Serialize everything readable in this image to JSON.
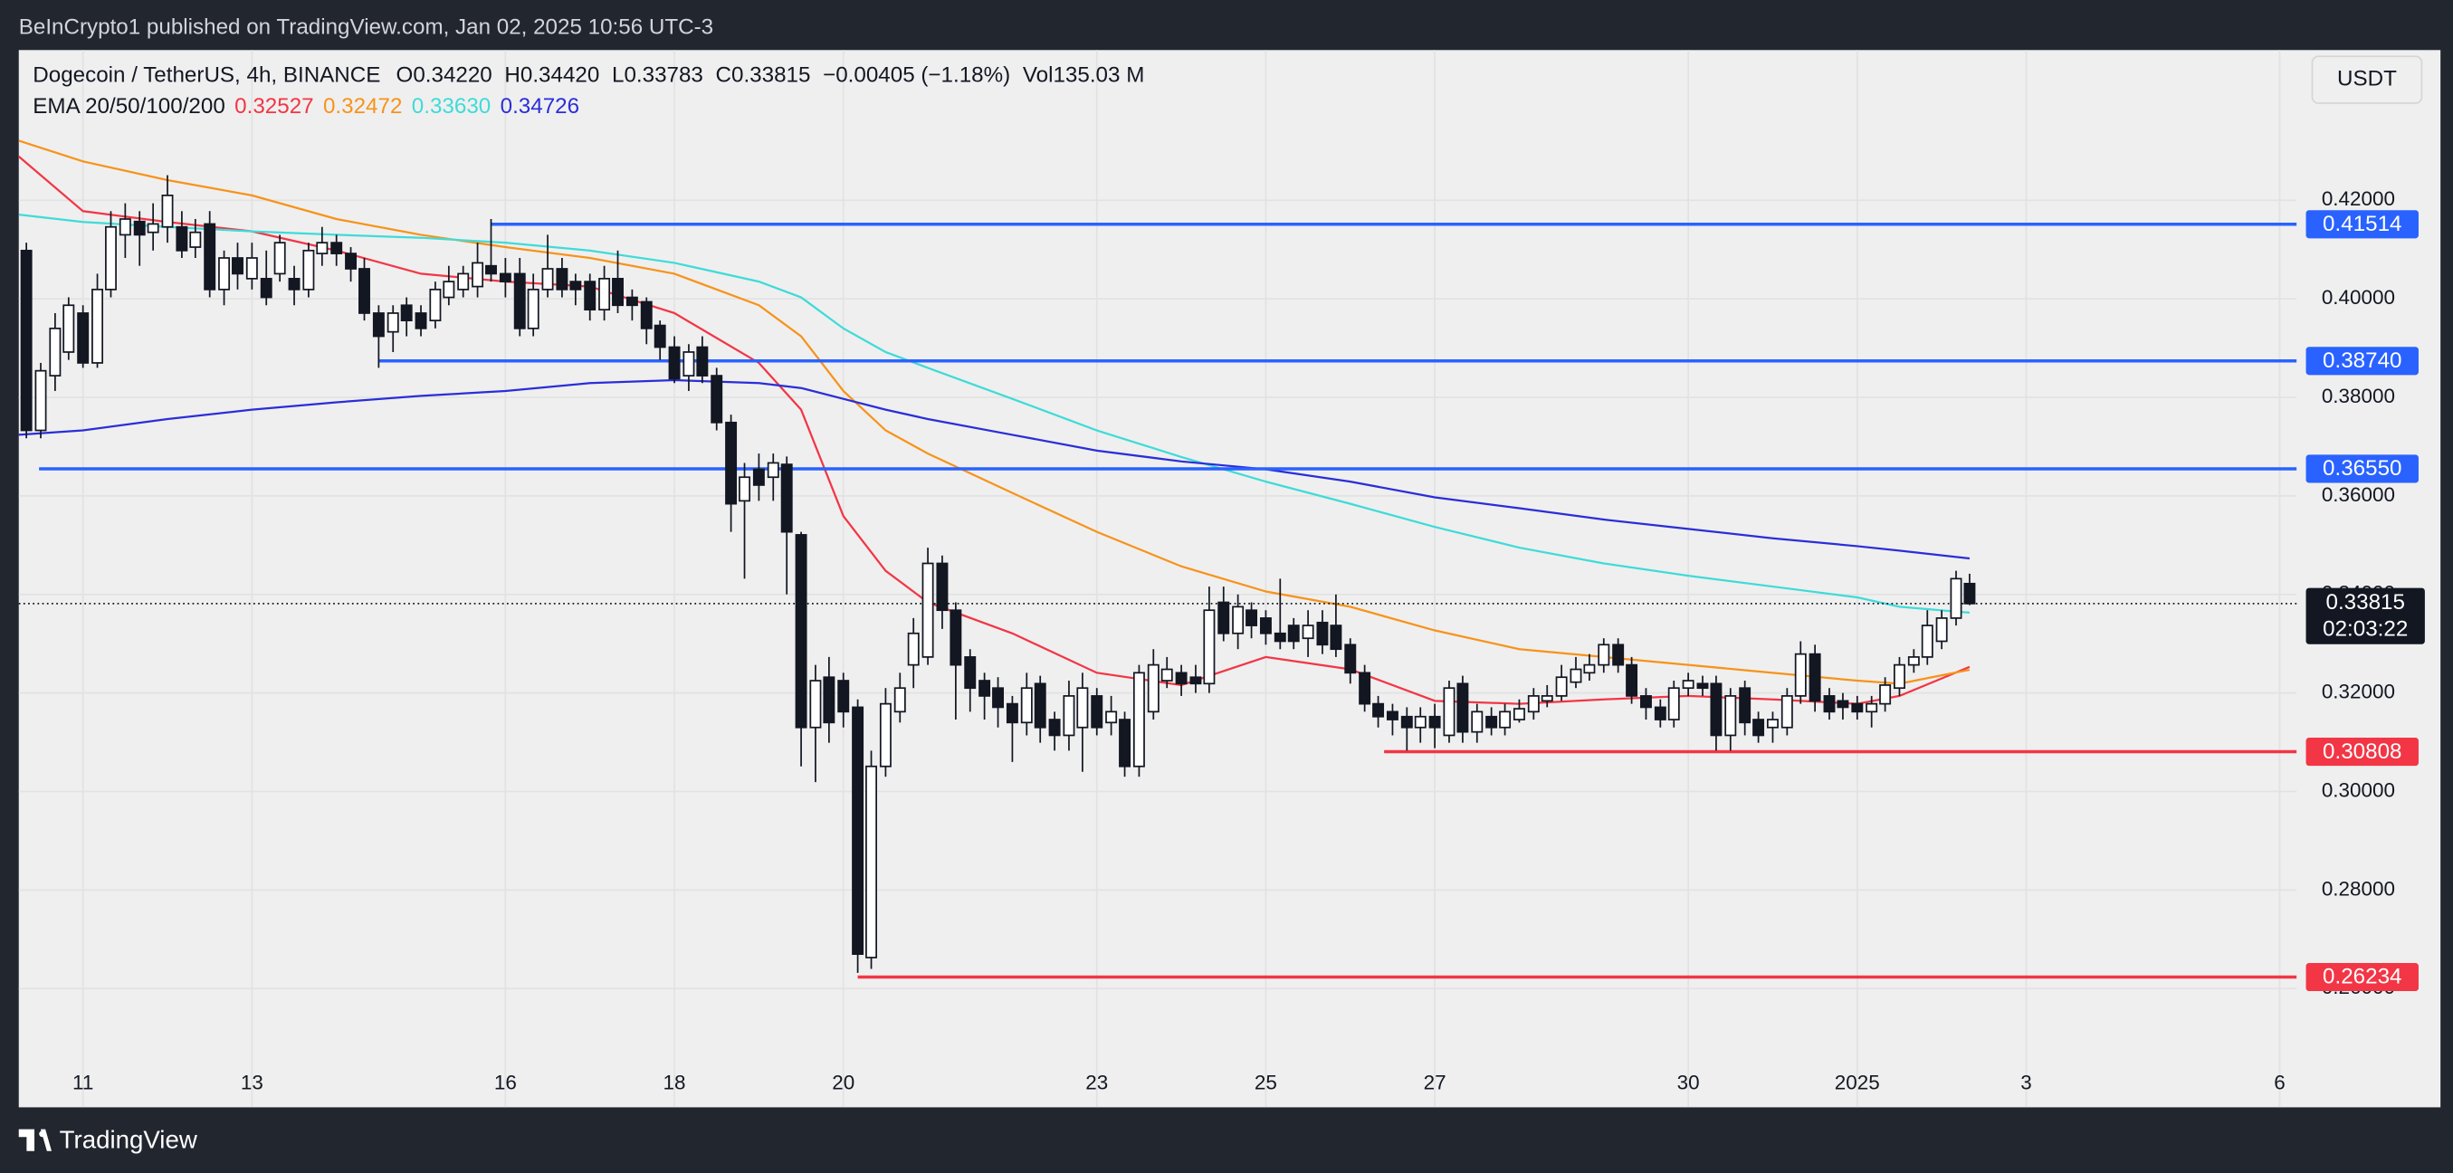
{
  "header": {
    "publisher": "BeInCrypto1 published on TradingView.com, Jan 02, 2025 10:56 UTC-3"
  },
  "footer": {
    "brand": "TradingView"
  },
  "chart_data": {
    "type": "candlestick",
    "symbol": "Dogecoin / TetherUS, 4h, BINANCE",
    "ohlc_legend": [
      {
        "label": "O",
        "value": "0.34220"
      },
      {
        "label": "H",
        "value": "0.34420"
      },
      {
        "label": "L",
        "value": "0.33783"
      },
      {
        "label": "C",
        "value": "0.33815"
      }
    ],
    "change": "−0.00405 (−1.18%)",
    "volume_label": "Vol",
    "volume": "135.03 M",
    "currency": "USDT",
    "up_color": "#ffffff",
    "down_color": "#131722",
    "x": [
      10.33,
      10.5,
      10.67,
      10.83,
      11,
      11.17,
      11.33,
      11.5,
      11.67,
      11.83,
      12,
      12.17,
      12.33,
      12.5,
      12.67,
      12.83,
      13,
      13.17,
      13.33,
      13.5,
      13.67,
      13.83,
      14,
      14.17,
      14.33,
      14.5,
      14.67,
      14.83,
      15,
      15.17,
      15.33,
      15.5,
      15.67,
      15.83,
      16,
      16.17,
      16.33,
      16.5,
      16.67,
      16.83,
      17,
      17.17,
      17.33,
      17.5,
      17.67,
      17.83,
      18,
      18.17,
      18.33,
      18.5,
      18.67,
      18.83,
      19,
      19.17,
      19.33,
      19.5,
      19.67,
      19.83,
      20,
      20.17,
      20.33,
      20.5,
      20.67,
      20.83,
      21,
      21.17,
      21.33,
      21.5,
      21.67,
      21.83,
      22,
      22.17,
      22.33,
      22.5,
      22.67,
      22.83,
      23,
      23.17,
      23.33,
      23.5,
      23.67,
      23.83,
      24,
      24.17,
      24.33,
      24.5,
      24.67,
      24.83,
      25,
      25.17,
      25.33,
      25.5,
      25.67,
      25.83,
      26,
      26.17,
      26.33,
      26.5,
      26.67,
      26.83,
      27,
      27.17,
      27.33,
      27.5,
      27.67,
      27.83,
      28,
      28.17,
      28.33,
      28.5,
      28.67,
      28.83,
      29,
      29.17,
      29.33,
      29.5,
      29.67,
      29.83,
      30,
      30.17,
      30.33,
      30.5,
      30.67,
      30.83,
      31,
      31.17,
      31.33,
      31.5,
      31.67,
      31.83,
      32,
      32.17,
      32.33,
      32.5,
      32.67,
      32.83,
      33,
      33.17,
      33.33
    ],
    "ohlc": [
      [
        0.4098,
        0.4114,
        0.3717,
        0.3733
      ],
      [
        0.3733,
        0.387,
        0.3717,
        0.3854
      ],
      [
        0.3844,
        0.3971,
        0.3813,
        0.394
      ],
      [
        0.3892,
        0.4003,
        0.3876,
        0.3987
      ],
      [
        0.3971,
        0.3987,
        0.386,
        0.387
      ],
      [
        0.387,
        0.4051,
        0.386,
        0.4019
      ],
      [
        0.4019,
        0.4178,
        0.4003,
        0.4146
      ],
      [
        0.413,
        0.4194,
        0.4083,
        0.4162
      ],
      [
        0.4157,
        0.4178,
        0.4067,
        0.413
      ],
      [
        0.4135,
        0.4194,
        0.4098,
        0.4152
      ],
      [
        0.4146,
        0.4251,
        0.4114,
        0.421
      ],
      [
        0.4146,
        0.4178,
        0.4083,
        0.4098
      ],
      [
        0.4105,
        0.4162,
        0.4083,
        0.4135
      ],
      [
        0.4152,
        0.4178,
        0.4003,
        0.4019
      ],
      [
        0.4019,
        0.4098,
        0.3987,
        0.4083
      ],
      [
        0.4083,
        0.4114,
        0.4019,
        0.4051
      ],
      [
        0.4041,
        0.4114,
        0.4019,
        0.4083
      ],
      [
        0.4041,
        0.4098,
        0.3987,
        0.4003
      ],
      [
        0.4051,
        0.413,
        0.4035,
        0.4114
      ],
      [
        0.4041,
        0.4067,
        0.3987,
        0.4019
      ],
      [
        0.4019,
        0.4114,
        0.4003,
        0.4098
      ],
      [
        0.4092,
        0.4146,
        0.4067,
        0.4114
      ],
      [
        0.4114,
        0.413,
        0.4067,
        0.4092
      ],
      [
        0.4092,
        0.4105,
        0.4035,
        0.4061
      ],
      [
        0.4061,
        0.4083,
        0.3956,
        0.3971
      ],
      [
        0.3971,
        0.3987,
        0.386,
        0.3924
      ],
      [
        0.3933,
        0.3987,
        0.3892,
        0.3971
      ],
      [
        0.3987,
        0.4003,
        0.3924,
        0.3956
      ],
      [
        0.3971,
        0.3987,
        0.3924,
        0.394
      ],
      [
        0.3956,
        0.4035,
        0.394,
        0.4019
      ],
      [
        0.4003,
        0.4067,
        0.3987,
        0.4035
      ],
      [
        0.4019,
        0.4067,
        0.4003,
        0.4051
      ],
      [
        0.4025,
        0.4114,
        0.4003,
        0.4073
      ],
      [
        0.4067,
        0.4162,
        0.4035,
        0.4051
      ],
      [
        0.4051,
        0.4083,
        0.4003,
        0.4035
      ],
      [
        0.4051,
        0.4083,
        0.3924,
        0.394
      ],
      [
        0.394,
        0.4051,
        0.3924,
        0.4019
      ],
      [
        0.4019,
        0.413,
        0.4003,
        0.4061
      ],
      [
        0.4061,
        0.4083,
        0.4003,
        0.4019
      ],
      [
        0.4035,
        0.4051,
        0.3987,
        0.4019
      ],
      [
        0.4035,
        0.4051,
        0.3956,
        0.3978
      ],
      [
        0.3978,
        0.4067,
        0.3956,
        0.4041
      ],
      [
        0.4041,
        0.4098,
        0.3971,
        0.3987
      ],
      [
        0.4003,
        0.4019,
        0.3956,
        0.3987
      ],
      [
        0.3994,
        0.4003,
        0.3908,
        0.394
      ],
      [
        0.3946,
        0.3956,
        0.3876,
        0.3902
      ],
      [
        0.3902,
        0.3924,
        0.3829,
        0.3838
      ],
      [
        0.3844,
        0.3908,
        0.3813,
        0.3892
      ],
      [
        0.3902,
        0.3924,
        0.3829,
        0.3844
      ],
      [
        0.3844,
        0.386,
        0.3733,
        0.3749
      ],
      [
        0.3749,
        0.3765,
        0.3527,
        0.3584
      ],
      [
        0.359,
        0.3667,
        0.3432,
        0.3638
      ],
      [
        0.3654,
        0.3686,
        0.359,
        0.3622
      ],
      [
        0.3638,
        0.3686,
        0.359,
        0.3667
      ],
      [
        0.3664,
        0.368,
        0.34,
        0.3527
      ],
      [
        0.3521,
        0.3527,
        0.3051,
        0.313
      ],
      [
        0.313,
        0.3257,
        0.3019,
        0.3225
      ],
      [
        0.3232,
        0.3273,
        0.3099,
        0.314
      ],
      [
        0.3225,
        0.3241,
        0.313,
        0.3162
      ],
      [
        0.3171,
        0.3187,
        0.2632,
        0.267
      ],
      [
        0.2663,
        0.3083,
        0.264,
        0.3051
      ],
      [
        0.3051,
        0.321,
        0.303,
        0.3178
      ],
      [
        0.3162,
        0.3241,
        0.314,
        0.321
      ],
      [
        0.3257,
        0.3352,
        0.321,
        0.3321
      ],
      [
        0.3273,
        0.3495,
        0.3257,
        0.3463
      ],
      [
        0.3463,
        0.3479,
        0.333,
        0.3368
      ],
      [
        0.3368,
        0.3384,
        0.3146,
        0.3257
      ],
      [
        0.3273,
        0.3289,
        0.3162,
        0.321
      ],
      [
        0.3225,
        0.3241,
        0.3146,
        0.3194
      ],
      [
        0.321,
        0.3232,
        0.313,
        0.3171
      ],
      [
        0.3178,
        0.3194,
        0.306,
        0.314
      ],
      [
        0.314,
        0.3241,
        0.3114,
        0.321
      ],
      [
        0.3219,
        0.3235,
        0.3099,
        0.313
      ],
      [
        0.3146,
        0.3162,
        0.3083,
        0.3114
      ],
      [
        0.3114,
        0.3225,
        0.3083,
        0.3194
      ],
      [
        0.313,
        0.3241,
        0.304,
        0.321
      ],
      [
        0.3194,
        0.321,
        0.3114,
        0.313
      ],
      [
        0.314,
        0.3194,
        0.3114,
        0.3162
      ],
      [
        0.3146,
        0.3162,
        0.303,
        0.3051
      ],
      [
        0.3051,
        0.3257,
        0.303,
        0.3241
      ],
      [
        0.3162,
        0.3289,
        0.3146,
        0.3257
      ],
      [
        0.3225,
        0.3273,
        0.321,
        0.3248
      ],
      [
        0.3241,
        0.3257,
        0.3194,
        0.3219
      ],
      [
        0.3232,
        0.3257,
        0.32,
        0.3219
      ],
      [
        0.3219,
        0.3416,
        0.32,
        0.3368
      ],
      [
        0.3384,
        0.3416,
        0.3305,
        0.3321
      ],
      [
        0.3321,
        0.34,
        0.3289,
        0.3375
      ],
      [
        0.3368,
        0.3384,
        0.3311,
        0.3337
      ],
      [
        0.3352,
        0.3368,
        0.3298,
        0.3321
      ],
      [
        0.3321,
        0.3432,
        0.3289,
        0.3305
      ],
      [
        0.3337,
        0.3352,
        0.3289,
        0.3305
      ],
      [
        0.3311,
        0.3368,
        0.3273,
        0.3337
      ],
      [
        0.3343,
        0.3368,
        0.3279,
        0.3298
      ],
      [
        0.3337,
        0.34,
        0.3273,
        0.3289
      ],
      [
        0.3298,
        0.3311,
        0.3219,
        0.3241
      ],
      [
        0.3241,
        0.3257,
        0.3162,
        0.3178
      ],
      [
        0.3178,
        0.3194,
        0.313,
        0.3152
      ],
      [
        0.3162,
        0.3178,
        0.3114,
        0.3146
      ],
      [
        0.3152,
        0.3171,
        0.3083,
        0.313
      ],
      [
        0.313,
        0.3171,
        0.3099,
        0.3152
      ],
      [
        0.3152,
        0.3178,
        0.3088,
        0.313
      ],
      [
        0.3114,
        0.3225,
        0.3099,
        0.321
      ],
      [
        0.3219,
        0.3235,
        0.3099,
        0.3121
      ],
      [
        0.3121,
        0.3178,
        0.3099,
        0.3162
      ],
      [
        0.3152,
        0.3171,
        0.3114,
        0.313
      ],
      [
        0.313,
        0.3178,
        0.3114,
        0.3162
      ],
      [
        0.3146,
        0.3187,
        0.314,
        0.3168
      ],
      [
        0.3162,
        0.321,
        0.3146,
        0.3194
      ],
      [
        0.3184,
        0.3216,
        0.3171,
        0.3194
      ],
      [
        0.3194,
        0.3257,
        0.3184,
        0.3232
      ],
      [
        0.3222,
        0.3273,
        0.321,
        0.3248
      ],
      [
        0.3241,
        0.3279,
        0.3225,
        0.3257
      ],
      [
        0.3257,
        0.3311,
        0.3241,
        0.3298
      ],
      [
        0.3298,
        0.3311,
        0.3241,
        0.3257
      ],
      [
        0.3257,
        0.3273,
        0.3178,
        0.3194
      ],
      [
        0.3194,
        0.321,
        0.3146,
        0.3171
      ],
      [
        0.3171,
        0.3187,
        0.313,
        0.3146
      ],
      [
        0.3146,
        0.3225,
        0.313,
        0.321
      ],
      [
        0.321,
        0.3241,
        0.3194,
        0.3225
      ],
      [
        0.3219,
        0.3235,
        0.3194,
        0.321
      ],
      [
        0.3219,
        0.3235,
        0.3083,
        0.3114
      ],
      [
        0.3114,
        0.321,
        0.3083,
        0.3194
      ],
      [
        0.321,
        0.3225,
        0.3114,
        0.314
      ],
      [
        0.3146,
        0.3162,
        0.3099,
        0.3114
      ],
      [
        0.313,
        0.3162,
        0.3099,
        0.3146
      ],
      [
        0.313,
        0.321,
        0.3114,
        0.3194
      ],
      [
        0.3194,
        0.3305,
        0.3178,
        0.3279
      ],
      [
        0.3279,
        0.3298,
        0.3162,
        0.3184
      ],
      [
        0.3194,
        0.321,
        0.3146,
        0.3162
      ],
      [
        0.3184,
        0.32,
        0.3146,
        0.3171
      ],
      [
        0.3178,
        0.3194,
        0.3146,
        0.3162
      ],
      [
        0.3162,
        0.3194,
        0.313,
        0.3178
      ],
      [
        0.3178,
        0.3232,
        0.3162,
        0.3216
      ],
      [
        0.321,
        0.3273,
        0.3194,
        0.3257
      ],
      [
        0.3257,
        0.3289,
        0.3241,
        0.3273
      ],
      [
        0.3273,
        0.3368,
        0.3257,
        0.3337
      ],
      [
        0.3305,
        0.3368,
        0.3289,
        0.3352
      ],
      [
        0.3352,
        0.3448,
        0.3337,
        0.3432
      ],
      [
        0.3422,
        0.3442,
        0.33783,
        0.33815
      ]
    ],
    "indicator_label": "EMA 20/50/100/200",
    "series": [
      {
        "color": "#f23645",
        "legend_value": "0.32527",
        "x": [
          10.24,
          11,
          12,
          13,
          14,
          15,
          16,
          17,
          18,
          19,
          19.5,
          20,
          20.5,
          21,
          22,
          23,
          24,
          25,
          26,
          27,
          28,
          29,
          30,
          31,
          32,
          32.5,
          33.33
        ],
        "values": [
          0.4289,
          0.4178,
          0.4156,
          0.4137,
          0.4098,
          0.4051,
          0.4035,
          0.4025,
          0.3971,
          0.387,
          0.3775,
          0.3559,
          0.3448,
          0.3384,
          0.3321,
          0.3241,
          0.3216,
          0.3273,
          0.3248,
          0.3184,
          0.3178,
          0.3187,
          0.3194,
          0.3187,
          0.3178,
          0.3194,
          0.3253
        ]
      },
      {
        "color": "#f7931a",
        "legend_value": "0.32472",
        "x": [
          10.24,
          11,
          12,
          13,
          14,
          15,
          16,
          17,
          18,
          19,
          19.5,
          20,
          20.5,
          21,
          22,
          23,
          24,
          25,
          26,
          27,
          28,
          29,
          30,
          31,
          32,
          32.5,
          33.33
        ],
        "values": [
          0.4321,
          0.4279,
          0.4241,
          0.421,
          0.4162,
          0.413,
          0.4105,
          0.4083,
          0.4051,
          0.3987,
          0.3924,
          0.3813,
          0.3733,
          0.3686,
          0.3606,
          0.3527,
          0.3457,
          0.3406,
          0.3375,
          0.3327,
          0.3289,
          0.3273,
          0.3257,
          0.3241,
          0.3225,
          0.3219,
          0.3247
        ]
      },
      {
        "color": "#3fdbd8",
        "legend_value": "0.33630",
        "x": [
          10.24,
          11,
          12,
          13,
          14,
          15,
          16,
          17,
          18,
          19,
          19.5,
          20,
          20.5,
          21,
          22,
          23,
          24,
          25,
          26,
          27,
          28,
          29,
          30,
          31,
          32,
          32.5,
          33.33
        ],
        "values": [
          0.4171,
          0.4156,
          0.4146,
          0.4137,
          0.413,
          0.4124,
          0.4114,
          0.4098,
          0.4073,
          0.4035,
          0.4003,
          0.394,
          0.3892,
          0.386,
          0.3797,
          0.3733,
          0.3679,
          0.3629,
          0.3584,
          0.3537,
          0.3495,
          0.3463,
          0.3438,
          0.3416,
          0.3394,
          0.3375,
          0.3363
        ]
      },
      {
        "color": "#2a2ed8",
        "legend_value": "0.34726",
        "x": [
          10.24,
          11,
          12,
          13,
          14,
          15,
          16,
          17,
          18,
          19,
          19.5,
          20,
          20.5,
          21,
          22,
          23,
          24,
          25,
          26,
          27,
          28,
          29,
          30,
          31,
          32,
          32.5,
          33.33
        ],
        "values": [
          0.3724,
          0.3733,
          0.3756,
          0.3775,
          0.379,
          0.3803,
          0.3813,
          0.3829,
          0.3835,
          0.3829,
          0.3819,
          0.3797,
          0.3775,
          0.3756,
          0.3724,
          0.3692,
          0.367,
          0.3654,
          0.3629,
          0.3597,
          0.3575,
          0.3552,
          0.3533,
          0.3514,
          0.3498,
          0.3489,
          0.3473
        ]
      }
    ],
    "levels": [
      {
        "value": 0.41514,
        "label": "0.41514",
        "start": 15.83,
        "color": "#2962ff"
      },
      {
        "value": 0.3874,
        "label": "0.38740",
        "start": 14.5,
        "color": "#2962ff"
      },
      {
        "value": 0.3655,
        "label": "0.36550",
        "start": 10.48,
        "color": "#2962ff"
      },
      {
        "value": 0.30808,
        "label": "0.30808",
        "start": 26.4,
        "color": "#f23645"
      },
      {
        "value": 0.26234,
        "label": "0.26234",
        "start": 20.17,
        "color": "#f23645"
      }
    ],
    "last_price": {
      "value": 0.33815,
      "label": "0.33815",
      "countdown": "02:03:22"
    },
    "xlim": [
      10.24,
      37.2
    ],
    "ylim": [
      0.2359,
      0.4505
    ],
    "xticks": [
      11,
      13,
      16,
      18,
      20,
      23,
      25,
      27,
      30,
      {
        "value": 32,
        "label": "2025"
      },
      {
        "value": 34,
        "label": "3"
      },
      {
        "value": 37,
        "label": "6"
      }
    ],
    "yticks": [
      {
        "value": 0.26,
        "label": "0.26000"
      },
      {
        "value": 0.28,
        "label": "0.28000"
      },
      {
        "value": 0.3,
        "label": "0.30000"
      },
      {
        "value": 0.32,
        "label": "0.32000"
      },
      {
        "value": 0.34,
        "label": "0.34000"
      },
      {
        "value": 0.36,
        "label": "0.36000"
      },
      {
        "value": 0.38,
        "label": "0.38000"
      },
      {
        "value": 0.4,
        "label": "0.40000"
      },
      {
        "value": 0.42,
        "label": "0.42000"
      }
    ],
    "grid": true
  }
}
